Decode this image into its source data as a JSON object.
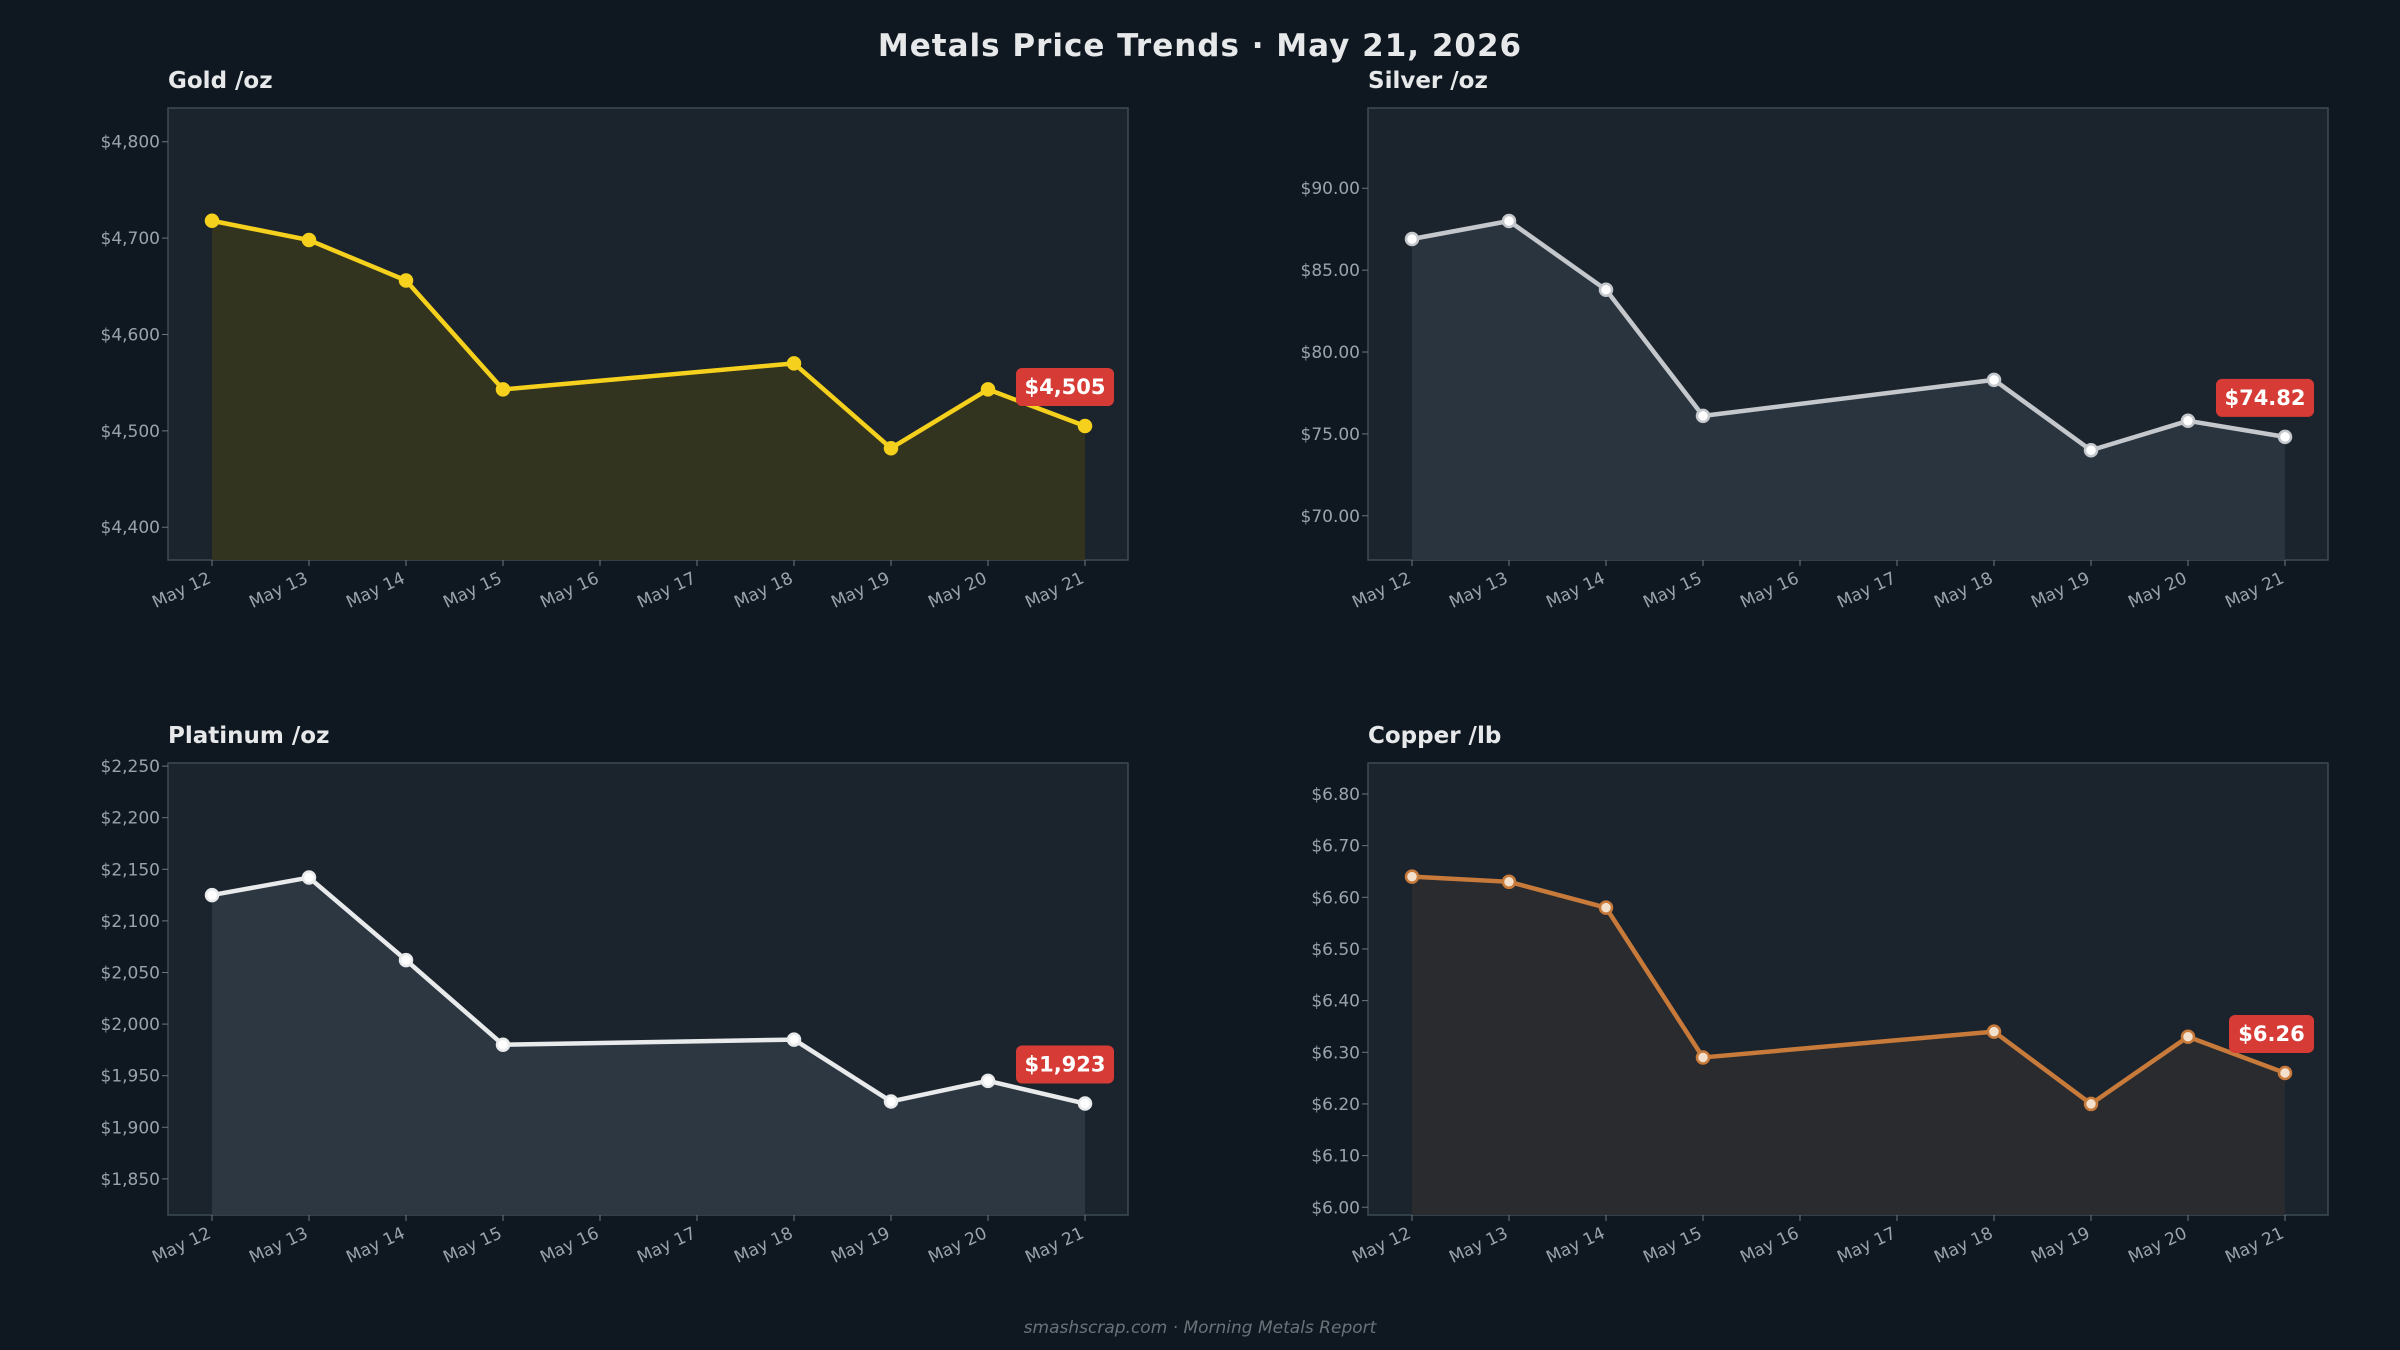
{
  "title": "Metals Price Trends  ·  May 21, 2026",
  "footer": "smashscrap.com  ·  Morning Metals Report",
  "chart_data": [
    {
      "type": "line",
      "title": "Gold  /oz",
      "color": "#f5d01c",
      "fill": "#34361f",
      "point_fill": "#f5d01c",
      "categories": [
        "May 12",
        "May 13",
        "May 14",
        "May 15",
        "May 16",
        "May 17",
        "May 18",
        "May 19",
        "May 20",
        "May 21"
      ],
      "x": [
        "May 12",
        "May 13",
        "May 14",
        "May 15",
        "May 18",
        "May 19",
        "May 20",
        "May 21"
      ],
      "values": [
        4718,
        4698,
        4656,
        4543,
        4570,
        4482,
        4543,
        4505
      ],
      "ylim": [
        4366,
        4835
      ],
      "yticks": [
        4400,
        4500,
        4600,
        4700,
        4800
      ],
      "ytick_labels": [
        "$4,400",
        "$4,500",
        "$4,600",
        "$4,700",
        "$4,800"
      ],
      "last_label": "$4,505"
    },
    {
      "type": "line",
      "title": "Silver  /oz",
      "color": "#c4c8cc",
      "fill": "#2b3640",
      "point_fill": "#ffffff",
      "categories": [
        "May 12",
        "May 13",
        "May 14",
        "May 15",
        "May 16",
        "May 17",
        "May 18",
        "May 19",
        "May 20",
        "May 21"
      ],
      "x": [
        "May 12",
        "May 13",
        "May 14",
        "May 15",
        "May 18",
        "May 19",
        "May 20",
        "May 21"
      ],
      "values": [
        86.9,
        88.0,
        83.8,
        76.1,
        78.3,
        74.0,
        75.8,
        74.82
      ],
      "ylim": [
        67.3,
        94.9
      ],
      "yticks": [
        70,
        75,
        80,
        85,
        90
      ],
      "ytick_labels": [
        "$70.00",
        "$75.00",
        "$80.00",
        "$85.00",
        "$90.00"
      ],
      "last_label": "$74.82"
    },
    {
      "type": "line",
      "title": "Platinum  /oz",
      "color": "#e8eaec",
      "fill": "#2d3942",
      "point_fill": "#ffffff",
      "categories": [
        "May 12",
        "May 13",
        "May 14",
        "May 15",
        "May 16",
        "May 17",
        "May 18",
        "May 19",
        "May 20",
        "May 21"
      ],
      "x": [
        "May 12",
        "May 13",
        "May 14",
        "May 15",
        "May 18",
        "May 19",
        "May 20",
        "May 21"
      ],
      "values": [
        2125,
        2142,
        2062,
        1980,
        1985,
        1925,
        1945,
        1923
      ],
      "ylim": [
        1815,
        2253
      ],
      "yticks": [
        1850,
        1900,
        1950,
        2000,
        2050,
        2100,
        2150,
        2200,
        2250
      ],
      "ytick_labels": [
        "$1,850",
        "$1,900",
        "$1,950",
        "$2,000",
        "$2,050",
        "$2,100",
        "$2,150",
        "$2,200",
        "$2,250"
      ],
      "last_label": "$1,923"
    },
    {
      "type": "line",
      "title": "Copper  /lb",
      "color": "#c87a3a",
      "fill": "#2b2c2f",
      "point_fill": "#f2e0cc",
      "categories": [
        "May 12",
        "May 13",
        "May 14",
        "May 15",
        "May 16",
        "May 17",
        "May 18",
        "May 19",
        "May 20",
        "May 21"
      ],
      "x": [
        "May 12",
        "May 13",
        "May 14",
        "May 15",
        "May 18",
        "May 19",
        "May 20",
        "May 21"
      ],
      "values": [
        6.64,
        6.63,
        6.58,
        6.29,
        6.34,
        6.2,
        6.33,
        6.26
      ],
      "ylim": [
        5.985,
        6.86
      ],
      "yticks": [
        6.0,
        6.1,
        6.2,
        6.3,
        6.4,
        6.5,
        6.6,
        6.7,
        6.8
      ],
      "ytick_labels": [
        "$6.00",
        "$6.10",
        "$6.20",
        "$6.30",
        "$6.40",
        "$6.50",
        "$6.60",
        "$6.70",
        "$6.80"
      ],
      "last_label": "$6.26"
    }
  ]
}
